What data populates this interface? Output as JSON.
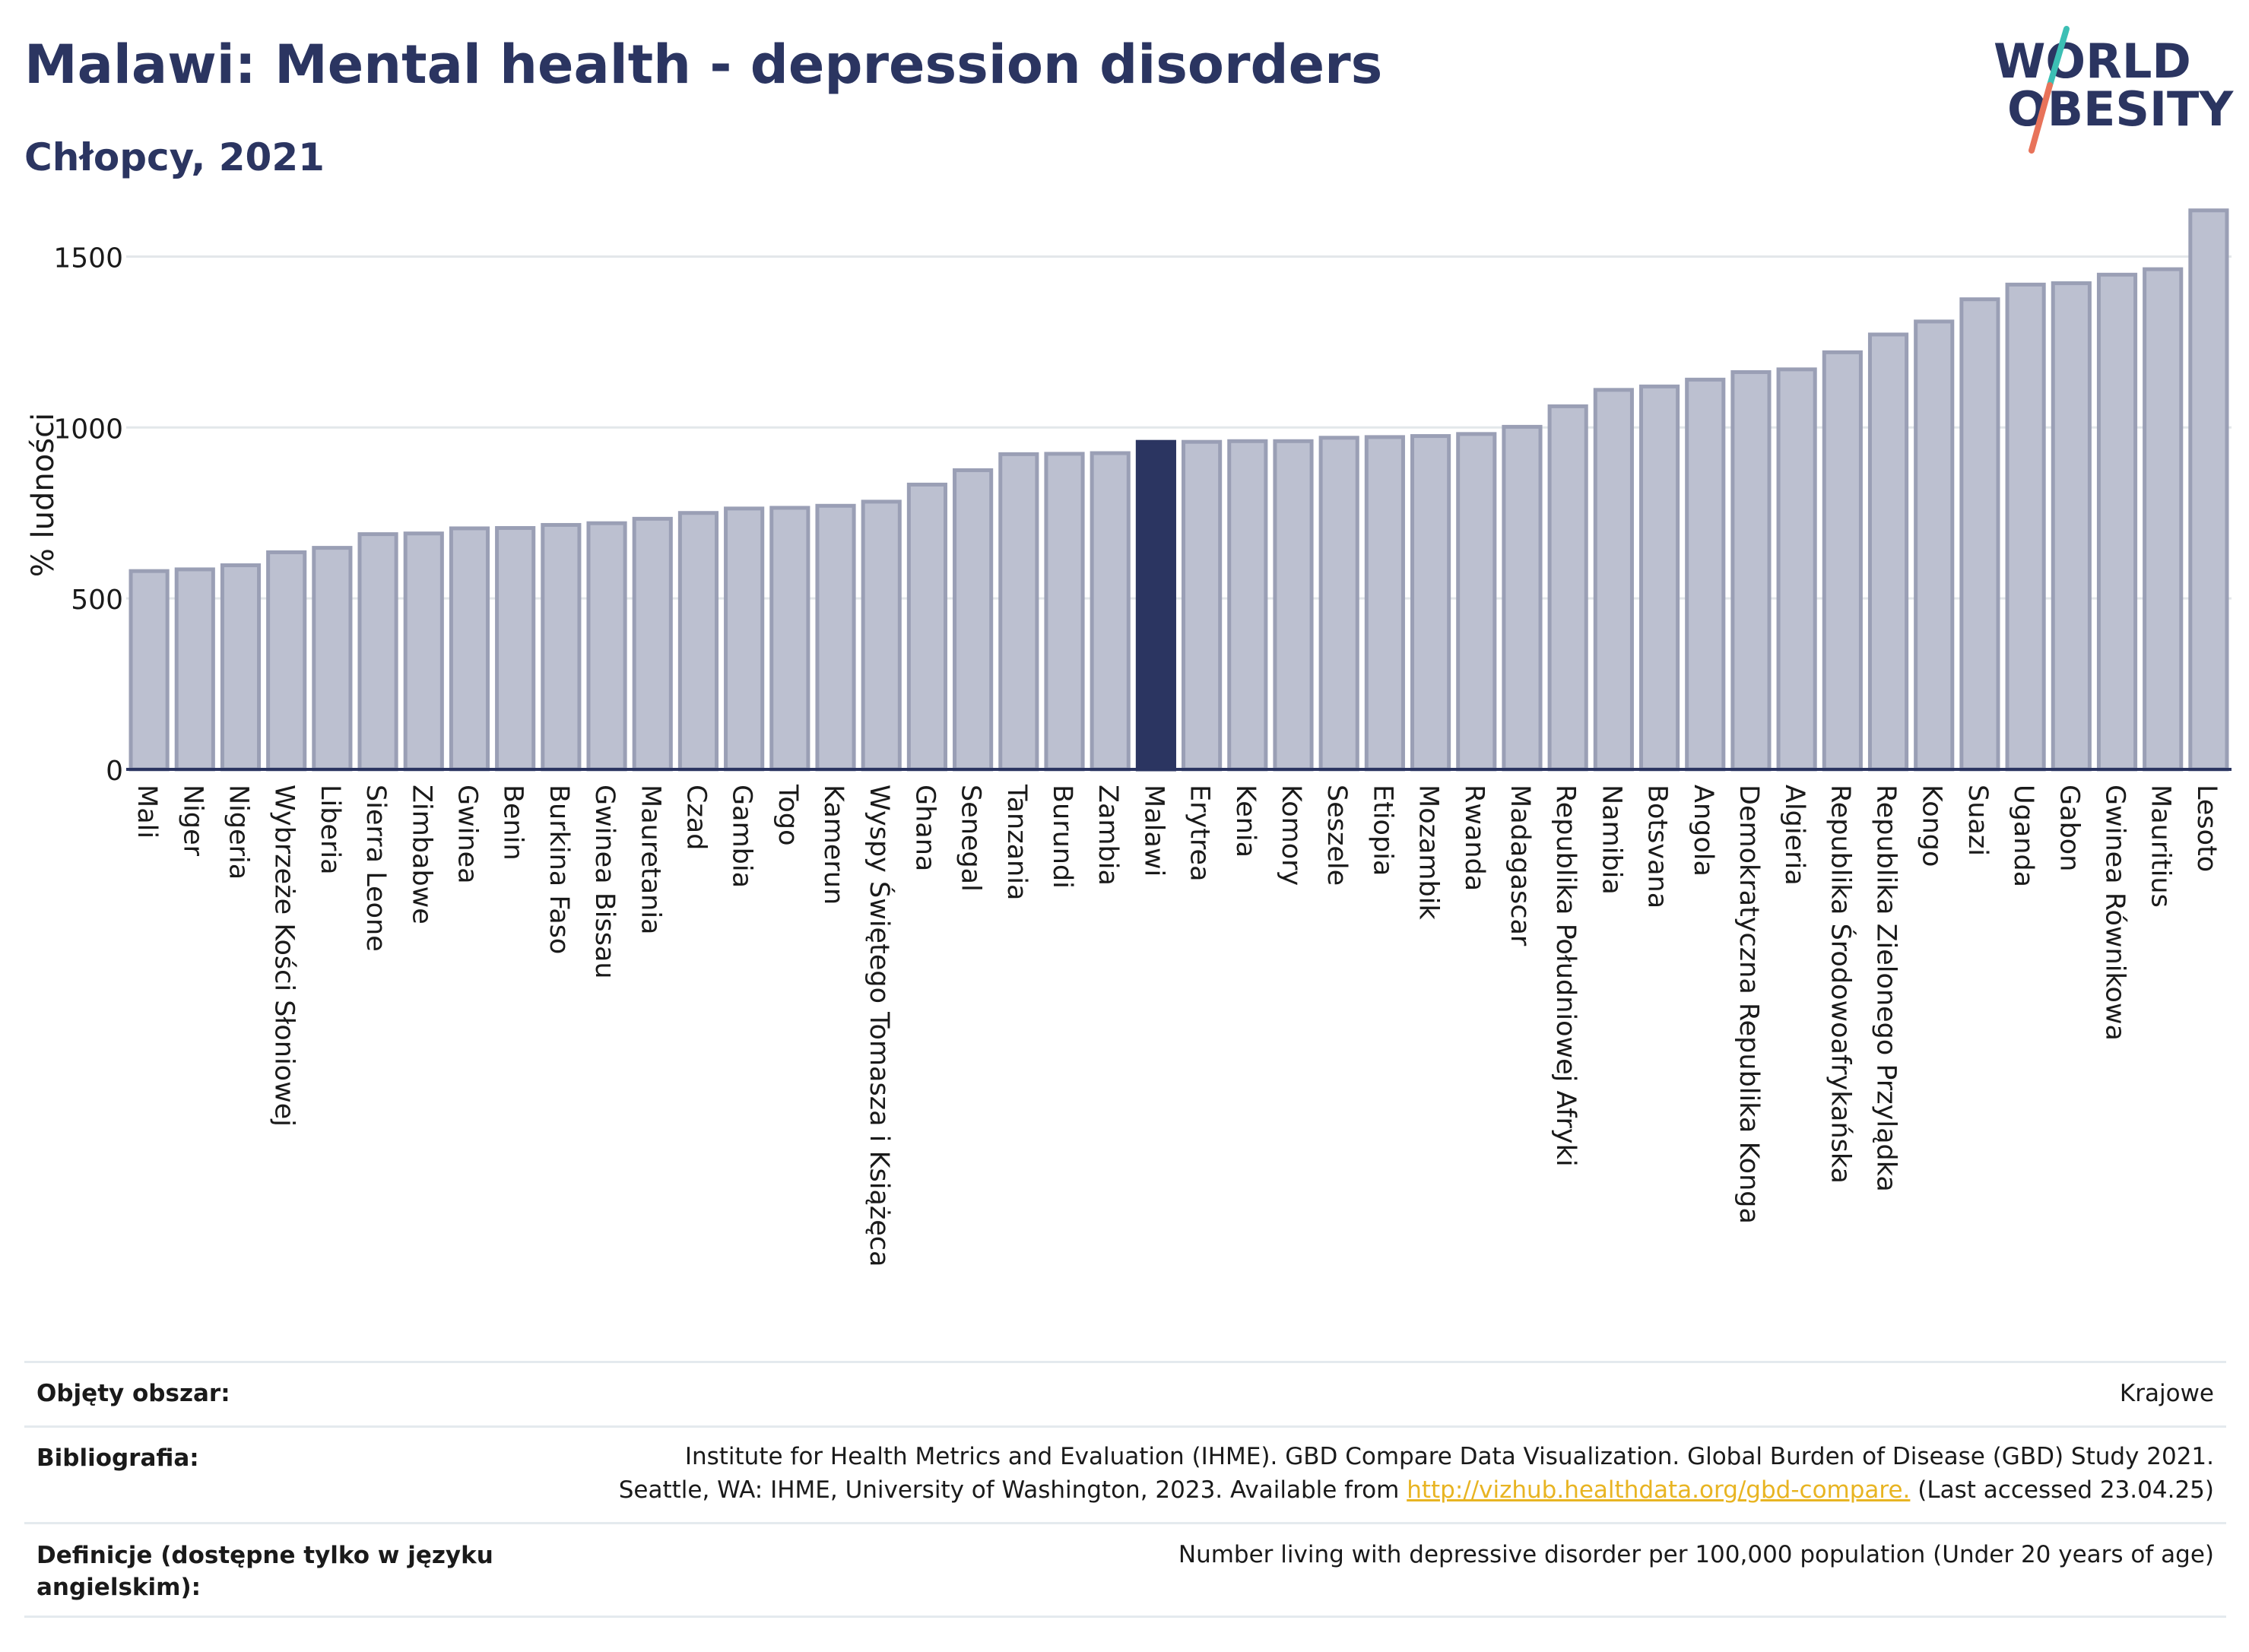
{
  "header": {
    "title": "Malawi: Mental health - depression disorders",
    "subtitle": "Chłopcy, 2021"
  },
  "logo": {
    "line1": "WORLD",
    "line2": "OBESITY"
  },
  "colors": {
    "bar_fill": "#bcc0d0",
    "bar_stroke": "#9a9fb5",
    "highlight": "#2b3561",
    "accent_teal": "#3cbfb4",
    "accent_coral": "#e8735a",
    "link": "#e8b422"
  },
  "chart_data": {
    "type": "bar",
    "ylabel": "% ludności",
    "ylim": [
      0,
      1650
    ],
    "yticks": [
      0,
      500,
      1000,
      1500
    ],
    "grid": true,
    "highlight": "Malawi",
    "categories": [
      "Mali",
      "Niger",
      "Nigeria",
      "Wybrzeże Kości Słoniowej",
      "Liberia",
      "Sierra Leone",
      "Zimbabwe",
      "Gwinea",
      "Benin",
      "Burkina Faso",
      "Gwinea Bissau",
      "Mauretania",
      "Czad",
      "Gambia",
      "Togo",
      "Kamerun",
      "Wyspy Świętego Tomasza i Książęca",
      "Ghana",
      "Senegal",
      "Tanzania",
      "Burundi",
      "Zambia",
      "Malawi",
      "Erytrea",
      "Kenia",
      "Komory",
      "Seszele",
      "Etiopia",
      "Mozambik",
      "Rwanda",
      "Madagascar",
      "Republika Południowej Afryki",
      "Namibia",
      "Botsvana",
      "Angola",
      "Demokratyczna Republika Konga",
      "Algieria",
      "Republika Środowoafrykańska",
      "Republika Zielonego Przylądka",
      "Kongo",
      "Suazi",
      "Uganda",
      "Gabon",
      "Gwinea Równikowa",
      "Mauritius",
      "Lesoto"
    ],
    "values": [
      580,
      585,
      597,
      635,
      648,
      688,
      690,
      705,
      706,
      715,
      720,
      733,
      750,
      763,
      765,
      771,
      783,
      833,
      875,
      922,
      923,
      925,
      958,
      958,
      960,
      960,
      970,
      972,
      975,
      981,
      1002,
      1062,
      1110,
      1120,
      1140,
      1162,
      1170,
      1220,
      1272,
      1310,
      1375,
      1418,
      1422,
      1447,
      1463,
      1635
    ]
  },
  "footer": {
    "coverage_label": "Objęty obszar:",
    "coverage_value": "Krajowe",
    "bibliography_label": "Bibliografia:",
    "bibliography_line1": "Institute for Health Metrics and Evaluation (IHME). GBD Compare Data Visualization. Global Burden of Disease (GBD) Study 2021.",
    "bibliography_line2_pre": "Seattle, WA: IHME, University of Washington, 2023. Available from ",
    "bibliography_link": "http://vizhub.healthdata.org/gbd-compare.",
    "bibliography_line2_post": " (Last accessed 23.04.25)",
    "definitions_label": "Definicje (dostępne tylko w języku angielskim):",
    "definitions_value": "Number living with depressive disorder per 100,000 population (Under 20 years of age)"
  }
}
